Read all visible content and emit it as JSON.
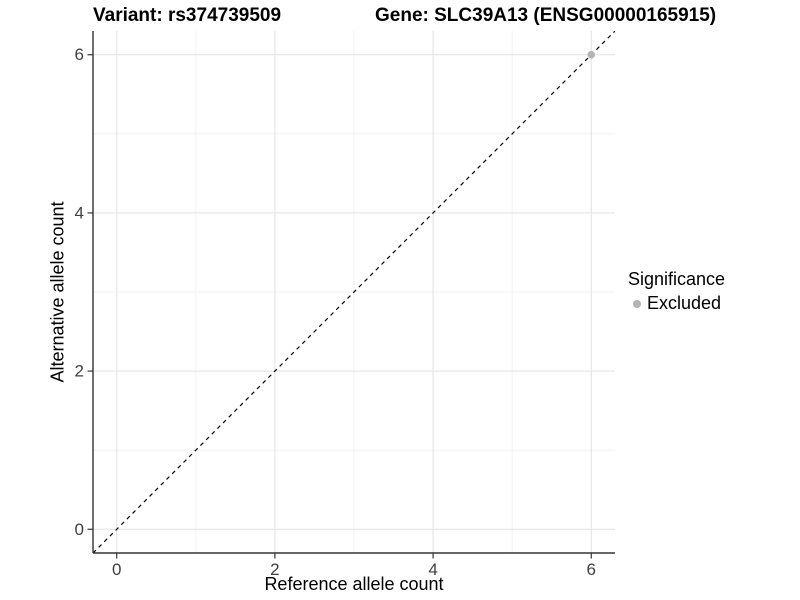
{
  "header": {
    "left_title": "Variant: rs374739509",
    "right_title": "Gene: SLC39A13 (ENSG00000165915)"
  },
  "axes": {
    "x_title": "Reference allele count",
    "y_title": "Alternative allele count"
  },
  "legend": {
    "title": "Significance",
    "items": [
      {
        "label": "Excluded",
        "color": "#b4b4b4"
      }
    ]
  },
  "colors": {
    "background": "#ffffff",
    "axis_line": "#333333",
    "tick_mark": "#333333",
    "tick_label": "#404040",
    "grid_major": "#e4e4e4",
    "grid_minor": "#f0f0f0",
    "reference_line": "#000000"
  },
  "chart_data": {
    "type": "scatter",
    "title_left": "Variant: rs374739509",
    "title_right": "Gene: SLC39A13 (ENSG00000165915)",
    "xlabel": "Reference allele count",
    "ylabel": "Alternative allele count",
    "xlim": [
      -0.3,
      6.3
    ],
    "ylim": [
      -0.3,
      6.3
    ],
    "x_ticks": [
      0,
      2,
      4,
      6
    ],
    "y_ticks": [
      0,
      2,
      4,
      6
    ],
    "x_minor_ticks": [
      1,
      3,
      5
    ],
    "y_minor_ticks": [
      1,
      3,
      5
    ],
    "grid": true,
    "legend_position": "right",
    "series": [
      {
        "name": "Excluded",
        "color": "#b4b4b4",
        "points": [
          {
            "x": 6,
            "y": 6
          }
        ]
      }
    ],
    "reference_line": {
      "kind": "identity",
      "style": "dashed",
      "color": "#000000",
      "from": [
        -0.3,
        -0.3
      ],
      "to": [
        6.3,
        6.3
      ]
    }
  }
}
